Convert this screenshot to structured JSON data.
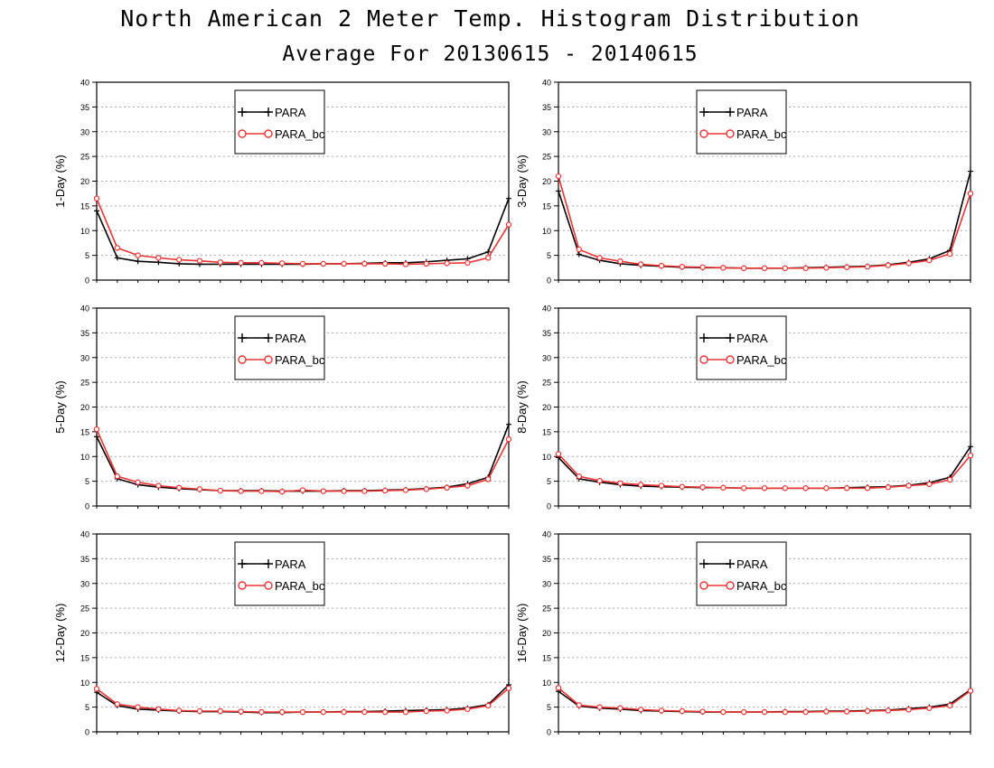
{
  "page": {
    "title": "North American 2 Meter Temp. Histogram Distribution",
    "subtitle": "Average For 20130615 - 20140615"
  },
  "colors": {
    "PARA": "#000000",
    "PARA_bc": "#ee3333",
    "grid": "#aaaaaa"
  },
  "chart_data": [
    {
      "type": "line",
      "ylabel": "1-Day (%)",
      "ylim": [
        0,
        40
      ],
      "yticks": [
        0,
        5,
        10,
        15,
        20,
        25,
        30,
        35,
        40
      ],
      "grid": true,
      "legend": "top-left",
      "x": [
        1,
        2,
        3,
        4,
        5,
        6,
        7,
        8,
        9,
        10,
        11,
        12,
        13,
        14,
        15,
        16,
        17,
        18,
        19,
        20,
        21
      ],
      "series": [
        {
          "name": "PARA",
          "marker": "plus",
          "values": [
            14.0,
            4.5,
            3.8,
            3.6,
            3.3,
            3.2,
            3.2,
            3.2,
            3.2,
            3.2,
            3.2,
            3.3,
            3.3,
            3.4,
            3.5,
            3.5,
            3.7,
            4.0,
            4.3,
            5.7,
            16.5
          ]
        },
        {
          "name": "PARA_bc",
          "marker": "circle",
          "values": [
            16.5,
            6.5,
            5.0,
            4.5,
            4.1,
            3.9,
            3.6,
            3.5,
            3.5,
            3.4,
            3.3,
            3.3,
            3.3,
            3.3,
            3.3,
            3.2,
            3.3,
            3.4,
            3.5,
            4.5,
            11.2
          ]
        }
      ]
    },
    {
      "type": "line",
      "ylabel": "3-Day (%)",
      "ylim": [
        0,
        40
      ],
      "yticks": [
        0,
        5,
        10,
        15,
        20,
        25,
        30,
        35,
        40
      ],
      "grid": true,
      "legend": "top-left",
      "x": [
        1,
        2,
        3,
        4,
        5,
        6,
        7,
        8,
        9,
        10,
        11,
        12,
        13,
        14,
        15,
        16,
        17,
        18,
        19,
        20,
        21
      ],
      "series": [
        {
          "name": "PARA",
          "marker": "plus",
          "values": [
            18.0,
            5.2,
            4.0,
            3.3,
            3.0,
            2.8,
            2.6,
            2.5,
            2.5,
            2.4,
            2.4,
            2.4,
            2.5,
            2.6,
            2.7,
            2.8,
            3.1,
            3.6,
            4.3,
            6.0,
            22.0
          ]
        },
        {
          "name": "PARA_bc",
          "marker": "circle",
          "values": [
            21.0,
            6.2,
            4.5,
            3.8,
            3.2,
            2.9,
            2.7,
            2.6,
            2.5,
            2.4,
            2.4,
            2.4,
            2.4,
            2.5,
            2.6,
            2.7,
            3.0,
            3.4,
            4.0,
            5.3,
            17.5
          ]
        }
      ]
    },
    {
      "type": "line",
      "ylabel": "5-Day (%)",
      "ylim": [
        0,
        40
      ],
      "yticks": [
        0,
        5,
        10,
        15,
        20,
        25,
        30,
        35,
        40
      ],
      "grid": true,
      "legend": "top-left",
      "x": [
        1,
        2,
        3,
        4,
        5,
        6,
        7,
        8,
        9,
        10,
        11,
        12,
        13,
        14,
        15,
        16,
        17,
        18,
        19,
        20,
        21
      ],
      "series": [
        {
          "name": "PARA",
          "marker": "plus",
          "values": [
            14.0,
            5.5,
            4.3,
            3.8,
            3.5,
            3.3,
            3.1,
            3.1,
            3.1,
            3.0,
            3.0,
            3.0,
            3.1,
            3.1,
            3.2,
            3.3,
            3.5,
            3.8,
            4.5,
            5.8,
            16.5
          ]
        },
        {
          "name": "PARA_bc",
          "marker": "circle",
          "values": [
            15.5,
            6.0,
            4.8,
            4.1,
            3.7,
            3.4,
            3.1,
            3.0,
            3.0,
            2.9,
            3.2,
            3.0,
            3.0,
            3.0,
            3.1,
            3.2,
            3.4,
            3.7,
            4.1,
            5.4,
            13.5
          ]
        }
      ]
    },
    {
      "type": "line",
      "ylabel": "8-Day (%)",
      "ylim": [
        0,
        40
      ],
      "yticks": [
        0,
        5,
        10,
        15,
        20,
        25,
        30,
        35,
        40
      ],
      "grid": true,
      "legend": "top-left",
      "x": [
        1,
        2,
        3,
        4,
        5,
        6,
        7,
        8,
        9,
        10,
        11,
        12,
        13,
        14,
        15,
        16,
        17,
        18,
        19,
        20,
        21
      ],
      "series": [
        {
          "name": "PARA",
          "marker": "plus",
          "values": [
            9.8,
            5.5,
            4.8,
            4.3,
            4.0,
            3.9,
            3.8,
            3.7,
            3.7,
            3.6,
            3.6,
            3.6,
            3.6,
            3.6,
            3.7,
            3.8,
            3.9,
            4.2,
            4.7,
            5.8,
            12.0
          ]
        },
        {
          "name": "PARA_bc",
          "marker": "circle",
          "values": [
            10.5,
            6.0,
            5.1,
            4.6,
            4.3,
            4.1,
            3.9,
            3.8,
            3.7,
            3.6,
            3.6,
            3.6,
            3.6,
            3.6,
            3.6,
            3.6,
            3.8,
            4.1,
            4.4,
            5.3,
            10.2
          ]
        }
      ]
    },
    {
      "type": "line",
      "ylabel": "12-Day (%)",
      "ylim": [
        0,
        40
      ],
      "yticks": [
        0,
        5,
        10,
        15,
        20,
        25,
        30,
        35,
        40
      ],
      "grid": true,
      "legend": "top-left",
      "x": [
        1,
        2,
        3,
        4,
        5,
        6,
        7,
        8,
        9,
        10,
        11,
        12,
        13,
        14,
        15,
        16,
        17,
        18,
        19,
        20,
        21
      ],
      "series": [
        {
          "name": "PARA",
          "marker": "plus",
          "values": [
            8.0,
            5.3,
            4.6,
            4.4,
            4.2,
            4.1,
            4.1,
            4.0,
            3.9,
            3.9,
            4.0,
            4.0,
            4.1,
            4.1,
            4.2,
            4.3,
            4.4,
            4.5,
            4.8,
            5.5,
            9.5
          ]
        },
        {
          "name": "PARA_bc",
          "marker": "circle",
          "values": [
            8.7,
            5.6,
            5.0,
            4.6,
            4.3,
            4.2,
            4.2,
            4.1,
            4.0,
            4.0,
            4.0,
            4.0,
            4.0,
            4.0,
            4.0,
            4.0,
            4.2,
            4.3,
            4.6,
            5.3,
            8.8
          ]
        }
      ]
    },
    {
      "type": "line",
      "ylabel": "16-Day (%)",
      "ylim": [
        0,
        40
      ],
      "yticks": [
        0,
        5,
        10,
        15,
        20,
        25,
        30,
        35,
        40
      ],
      "grid": true,
      "legend": "top-left",
      "x": [
        1,
        2,
        3,
        4,
        5,
        6,
        7,
        8,
        9,
        10,
        11,
        12,
        13,
        14,
        15,
        16,
        17,
        18,
        19,
        20,
        21
      ],
      "series": [
        {
          "name": "PARA",
          "marker": "plus",
          "values": [
            8.2,
            5.2,
            4.8,
            4.6,
            4.3,
            4.2,
            4.1,
            4.0,
            4.0,
            4.0,
            4.0,
            4.1,
            4.1,
            4.2,
            4.2,
            4.3,
            4.4,
            4.7,
            5.0,
            5.6,
            8.5
          ]
        },
        {
          "name": "PARA_bc",
          "marker": "circle",
          "values": [
            8.9,
            5.4,
            5.0,
            4.8,
            4.5,
            4.3,
            4.2,
            4.1,
            4.0,
            4.0,
            4.0,
            4.0,
            4.0,
            4.1,
            4.1,
            4.2,
            4.3,
            4.5,
            4.8,
            5.3,
            8.3
          ]
        }
      ]
    }
  ]
}
